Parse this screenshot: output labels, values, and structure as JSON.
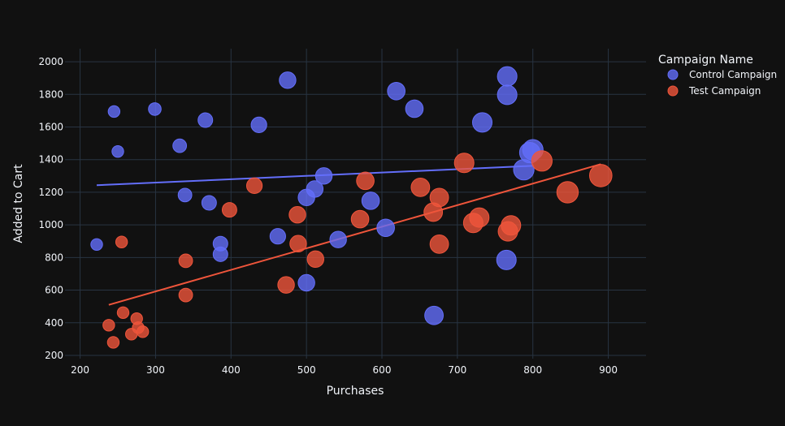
{
  "chart_data": {
    "type": "scatter",
    "xlabel": "Purchases",
    "ylabel": "Added to Cart",
    "xlim": [
      180,
      950
    ],
    "ylim": [
      180,
      2080
    ],
    "xticks": [
      200,
      300,
      400,
      500,
      600,
      700,
      800,
      900
    ],
    "yticks": [
      200,
      400,
      600,
      800,
      1000,
      1200,
      1400,
      1600,
      1800,
      2000
    ],
    "grid": true,
    "legend_title": "Campaign Name",
    "legend_position": "top-right",
    "series": [
      {
        "name": "Control Campaign",
        "color": "#636efa",
        "trendline": [
          [
            222,
            1243
          ],
          [
            800,
            1362
          ]
        ],
        "points": [
          {
            "x": 222,
            "y": 880,
            "size": 0.6
          },
          {
            "x": 245,
            "y": 1695,
            "size": 0.6
          },
          {
            "x": 250,
            "y": 1450,
            "size": 0.6
          },
          {
            "x": 299,
            "y": 1710,
            "size": 0.65
          },
          {
            "x": 332,
            "y": 1485,
            "size": 0.7
          },
          {
            "x": 339,
            "y": 1183,
            "size": 0.7
          },
          {
            "x": 366,
            "y": 1642,
            "size": 0.75
          },
          {
            "x": 371,
            "y": 1135,
            "size": 0.75
          },
          {
            "x": 386,
            "y": 820,
            "size": 0.75
          },
          {
            "x": 386,
            "y": 885,
            "size": 0.75
          },
          {
            "x": 437,
            "y": 1613,
            "size": 0.8
          },
          {
            "x": 462,
            "y": 930,
            "size": 0.8
          },
          {
            "x": 475,
            "y": 1887,
            "size": 0.85
          },
          {
            "x": 500,
            "y": 645,
            "size": 0.85
          },
          {
            "x": 500,
            "y": 1168,
            "size": 0.85
          },
          {
            "x": 511,
            "y": 1220,
            "size": 0.85
          },
          {
            "x": 523,
            "y": 1300,
            "size": 0.85
          },
          {
            "x": 542,
            "y": 910,
            "size": 0.85
          },
          {
            "x": 585,
            "y": 1148,
            "size": 0.9
          },
          {
            "x": 605,
            "y": 982,
            "size": 0.9
          },
          {
            "x": 619,
            "y": 1820,
            "size": 0.9
          },
          {
            "x": 643,
            "y": 1712,
            "size": 0.9
          },
          {
            "x": 669,
            "y": 445,
            "size": 0.95
          },
          {
            "x": 733,
            "y": 1628,
            "size": 1.0
          },
          {
            "x": 765,
            "y": 785,
            "size": 1.0
          },
          {
            "x": 766,
            "y": 1797,
            "size": 1.0
          },
          {
            "x": 766,
            "y": 1910,
            "size": 1.0
          },
          {
            "x": 788,
            "y": 1338,
            "size": 1.05
          },
          {
            "x": 796,
            "y": 1443,
            "size": 1.05
          },
          {
            "x": 800,
            "y": 1460,
            "size": 1.05
          }
        ]
      },
      {
        "name": "Test Campaign",
        "color": "#ef553b",
        "trendline": [
          [
            238,
            510
          ],
          [
            890,
            1372
          ]
        ],
        "points": [
          {
            "x": 238,
            "y": 385,
            "size": 0.6
          },
          {
            "x": 244,
            "y": 280,
            "size": 0.6
          },
          {
            "x": 255,
            "y": 895,
            "size": 0.6
          },
          {
            "x": 257,
            "y": 462,
            "size": 0.6
          },
          {
            "x": 268,
            "y": 330,
            "size": 0.6
          },
          {
            "x": 275,
            "y": 425,
            "size": 0.6
          },
          {
            "x": 277,
            "y": 370,
            "size": 0.6
          },
          {
            "x": 283,
            "y": 345,
            "size": 0.6
          },
          {
            "x": 340,
            "y": 570,
            "size": 0.7
          },
          {
            "x": 340,
            "y": 780,
            "size": 0.7
          },
          {
            "x": 398,
            "y": 1092,
            "size": 0.75
          },
          {
            "x": 431,
            "y": 1240,
            "size": 0.8
          },
          {
            "x": 473,
            "y": 632,
            "size": 0.85
          },
          {
            "x": 488,
            "y": 1062,
            "size": 0.85
          },
          {
            "x": 489,
            "y": 885,
            "size": 0.85
          },
          {
            "x": 512,
            "y": 790,
            "size": 0.85
          },
          {
            "x": 571,
            "y": 1035,
            "size": 0.9
          },
          {
            "x": 578,
            "y": 1270,
            "size": 0.9
          },
          {
            "x": 651,
            "y": 1230,
            "size": 0.95
          },
          {
            "x": 668,
            "y": 1078,
            "size": 0.95
          },
          {
            "x": 676,
            "y": 1168,
            "size": 0.95
          },
          {
            "x": 676,
            "y": 882,
            "size": 0.95
          },
          {
            "x": 709,
            "y": 1380,
            "size": 1.0
          },
          {
            "x": 721,
            "y": 1012,
            "size": 1.0
          },
          {
            "x": 729,
            "y": 1045,
            "size": 1.0
          },
          {
            "x": 767,
            "y": 960,
            "size": 1.0
          },
          {
            "x": 771,
            "y": 997,
            "size": 1.0
          },
          {
            "x": 812,
            "y": 1392,
            "size": 1.05
          },
          {
            "x": 846,
            "y": 1200,
            "size": 1.1
          },
          {
            "x": 890,
            "y": 1302,
            "size": 1.15
          }
        ]
      }
    ]
  }
}
